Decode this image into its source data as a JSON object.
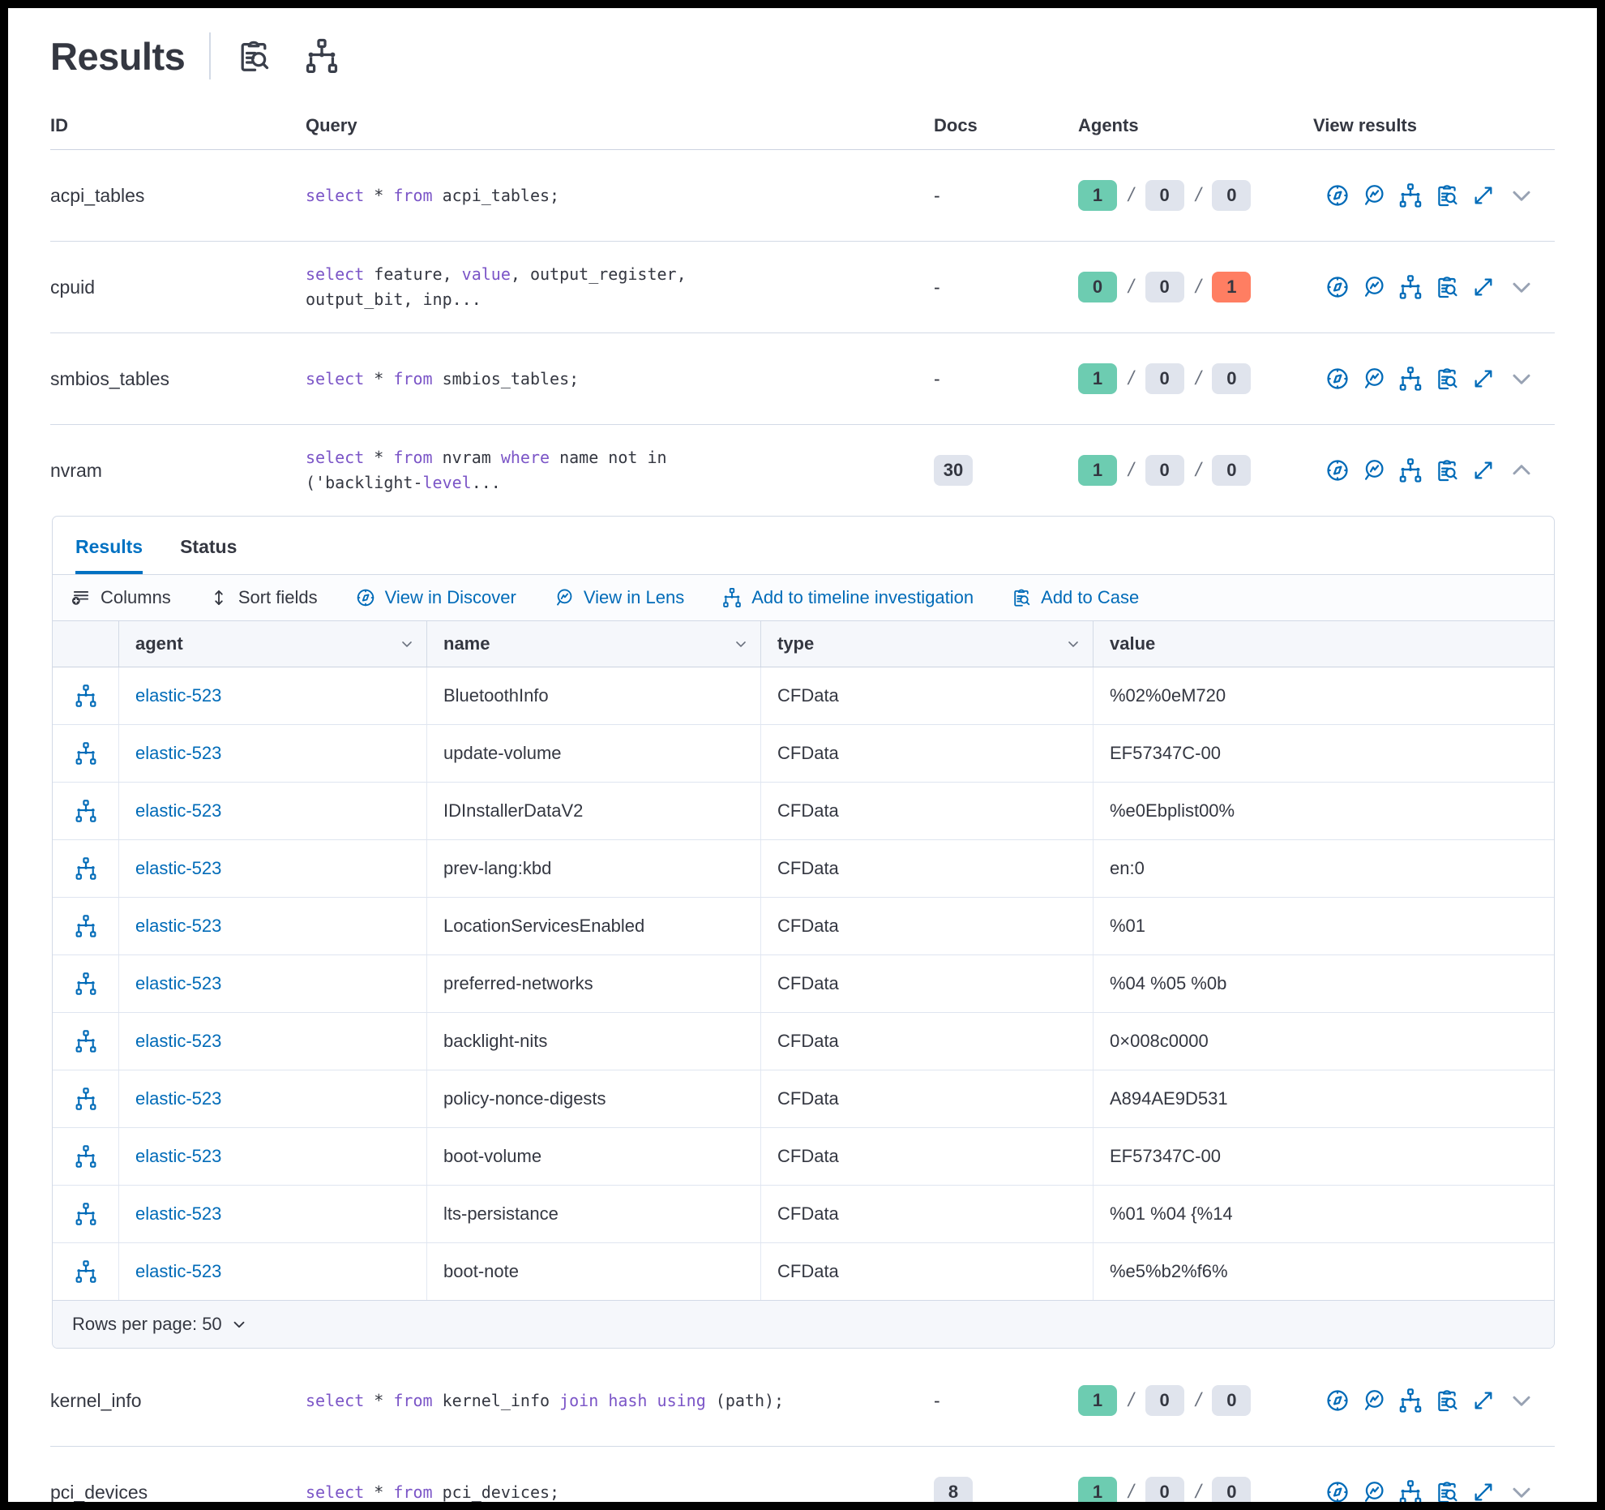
{
  "header": {
    "title": "Results"
  },
  "ui": {
    "slash": "/"
  },
  "colors": {
    "primary_blue": "#006bb8",
    "tab_blue": "#0071c2",
    "keyword_purple": "#7b55c7",
    "badge_green": "#6dccb1",
    "badge_gray": "#e0e4ed",
    "badge_red": "#ff7e62",
    "text": "#343741",
    "border": "#d3dae6"
  },
  "table": {
    "headers": [
      "ID",
      "Query",
      "Docs",
      "Agents",
      "View results"
    ]
  },
  "queries_top": [
    {
      "id": "acpi_tables",
      "segments": [
        {
          "t": "select",
          "kw": true
        },
        {
          "t": " * "
        },
        {
          "t": "from",
          "kw": true
        },
        {
          "t": " acpi_tables;"
        }
      ],
      "docs_text": "-",
      "docs_badge": "",
      "agents": [
        {
          "v": "1",
          "cls": "badge green"
        },
        {
          "v": "0",
          "cls": "badge gray"
        },
        {
          "v": "0",
          "cls": "badge gray"
        }
      ],
      "chev": "vr-chev"
    },
    {
      "id": "cpuid",
      "segments": [
        {
          "t": "select",
          "kw": true
        },
        {
          "t": " feature, "
        },
        {
          "t": "value",
          "kw": true
        },
        {
          "t": ", output_register,"
        },
        {
          "br": true
        },
        {
          "t": "output_bit, inp..."
        }
      ],
      "docs_text": "-",
      "docs_badge": "",
      "agents": [
        {
          "v": "0",
          "cls": "badge green"
        },
        {
          "v": "0",
          "cls": "badge gray"
        },
        {
          "v": "1",
          "cls": "badge red"
        }
      ],
      "chev": "vr-chev"
    },
    {
      "id": "smbios_tables",
      "segments": [
        {
          "t": "select",
          "kw": true
        },
        {
          "t": " * "
        },
        {
          "t": "from",
          "kw": true
        },
        {
          "t": " smbios_tables;"
        }
      ],
      "docs_text": "-",
      "docs_badge": "",
      "agents": [
        {
          "v": "1",
          "cls": "badge green"
        },
        {
          "v": "0",
          "cls": "badge gray"
        },
        {
          "v": "0",
          "cls": "badge gray"
        }
      ],
      "chev": "vr-chev"
    },
    {
      "id": "nvram",
      "segments": [
        {
          "t": "select",
          "kw": true
        },
        {
          "t": " * "
        },
        {
          "t": "from",
          "kw": true
        },
        {
          "t": " nvram "
        },
        {
          "t": "where",
          "kw": true
        },
        {
          "t": " name not in"
        },
        {
          "br": true
        },
        {
          "t": "('backlight-"
        },
        {
          "t": "level",
          "kw": true
        },
        {
          "t": "..."
        }
      ],
      "docs_text": "",
      "docs_badge": "30",
      "agents": [
        {
          "v": "1",
          "cls": "badge green"
        },
        {
          "v": "0",
          "cls": "badge gray"
        },
        {
          "v": "0",
          "cls": "badge gray"
        }
      ],
      "chev": "vr-chev up"
    }
  ],
  "queries_bottom": [
    {
      "id": "kernel_info",
      "segments": [
        {
          "t": "select",
          "kw": true
        },
        {
          "t": " * "
        },
        {
          "t": "from",
          "kw": true
        },
        {
          "t": " kernel_info "
        },
        {
          "t": "join",
          "kw": true
        },
        {
          "t": " "
        },
        {
          "t": "hash",
          "kw": true
        },
        {
          "t": " "
        },
        {
          "t": "using",
          "kw": true
        },
        {
          "t": " (path);"
        }
      ],
      "docs_text": "-",
      "docs_badge": "",
      "agents": [
        {
          "v": "1",
          "cls": "badge green"
        },
        {
          "v": "0",
          "cls": "badge gray"
        },
        {
          "v": "0",
          "cls": "badge gray"
        }
      ],
      "chev": "vr-chev"
    },
    {
      "id": "pci_devices",
      "segments": [
        {
          "t": "select",
          "kw": true
        },
        {
          "t": " * "
        },
        {
          "t": "from",
          "kw": true
        },
        {
          "t": " pci_devices;"
        }
      ],
      "docs_text": "",
      "docs_badge": "8",
      "agents": [
        {
          "v": "1",
          "cls": "badge green"
        },
        {
          "v": "0",
          "cls": "badge gray"
        },
        {
          "v": "0",
          "cls": "badge gray"
        }
      ],
      "chev": "vr-chev"
    }
  ],
  "panel": {
    "tabs": {
      "results": "Results",
      "status": "Status"
    },
    "toolbar": {
      "columns": "Columns",
      "sort_fields": "Sort fields",
      "discover": "View in Discover",
      "lens": "View in Lens",
      "timeline": "Add to timeline investigation",
      "case": "Add to Case"
    },
    "columns": [
      "agent",
      "name",
      "type",
      "value"
    ],
    "rows": [
      {
        "agent": "elastic-523",
        "name": "BluetoothInfo",
        "type": "CFData",
        "value": "%02%0eM720"
      },
      {
        "agent": "elastic-523",
        "name": "update-volume",
        "type": "CFData",
        "value": "EF57347C-00"
      },
      {
        "agent": "elastic-523",
        "name": "IDInstallerDataV2",
        "type": "CFData",
        "value": "%e0Ebplist00%"
      },
      {
        "agent": "elastic-523",
        "name": "prev-lang:kbd",
        "type": "CFData",
        "value": "en:0"
      },
      {
        "agent": "elastic-523",
        "name": "LocationServicesEnabled",
        "type": "CFData",
        "value": "%01"
      },
      {
        "agent": "elastic-523",
        "name": "preferred-networks",
        "type": "CFData",
        "value": "%04 %05 %0b"
      },
      {
        "agent": "elastic-523",
        "name": "backlight-nits",
        "type": "CFData",
        "value": "0×008c0000"
      },
      {
        "agent": "elastic-523",
        "name": "policy-nonce-digests",
        "type": "CFData",
        "value": "A894AE9D531"
      },
      {
        "agent": "elastic-523",
        "name": "boot-volume",
        "type": "CFData",
        "value": "EF57347C-00"
      },
      {
        "agent": "elastic-523",
        "name": "lts-persistance",
        "type": "CFData",
        "value": "%01 %04 {%14"
      },
      {
        "agent": "elastic-523",
        "name": "boot-note",
        "type": "CFData",
        "value": "%e5%b2%f6%"
      }
    ],
    "rows_per_page": "Rows per page: 50"
  }
}
